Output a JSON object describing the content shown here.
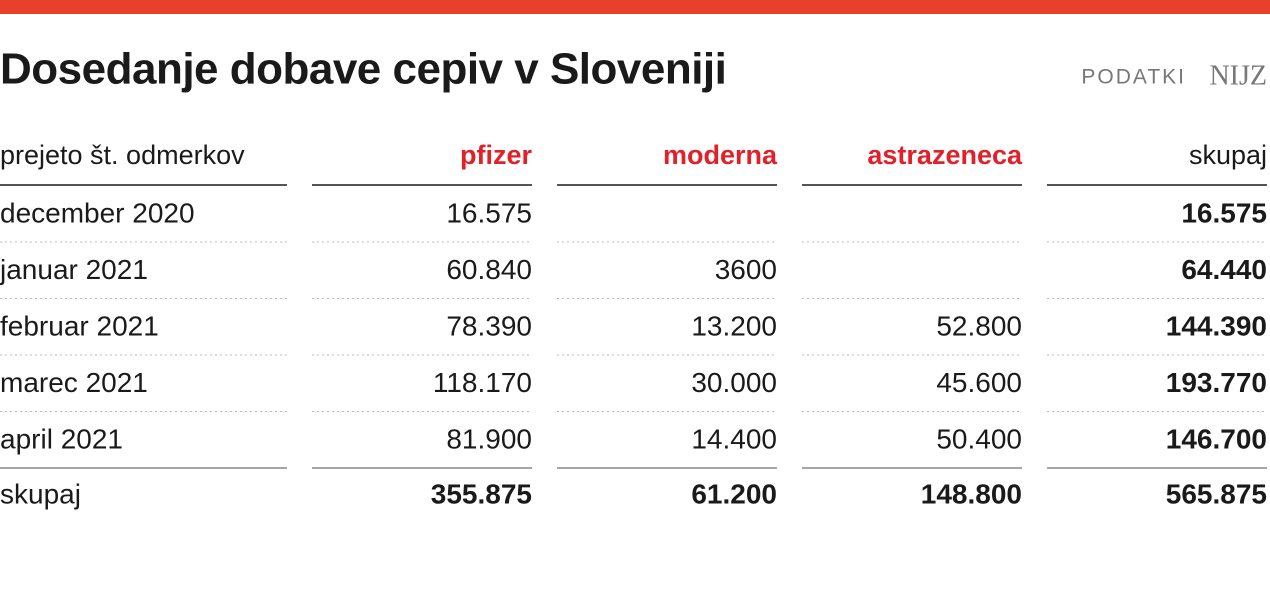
{
  "header": {
    "title": "Dosedanje dobave cepiv v Sloveniji",
    "source_label": "PODATKI",
    "source_name": "NIJZ"
  },
  "table": {
    "columns": [
      "prejeto št. odmerkov",
      "pfizer",
      "moderna",
      "astrazeneca",
      "skupaj"
    ],
    "rows": [
      [
        "december 2020",
        "16.575",
        null,
        null,
        "16.575"
      ],
      [
        "januar 2021",
        "60.840",
        "3600",
        null,
        "64.440"
      ],
      [
        "februar 2021",
        "78.390",
        "13.200",
        "52.800",
        "144.390"
      ],
      [
        "marec 2021",
        "118.170",
        "30.000",
        "45.600",
        "193.770"
      ],
      [
        "april 2021",
        "81.900",
        "14.400",
        "50.400",
        "146.700"
      ]
    ],
    "total": [
      "skupaj",
      "355.875",
      "61.200",
      "148.800",
      "565.875"
    ]
  }
}
